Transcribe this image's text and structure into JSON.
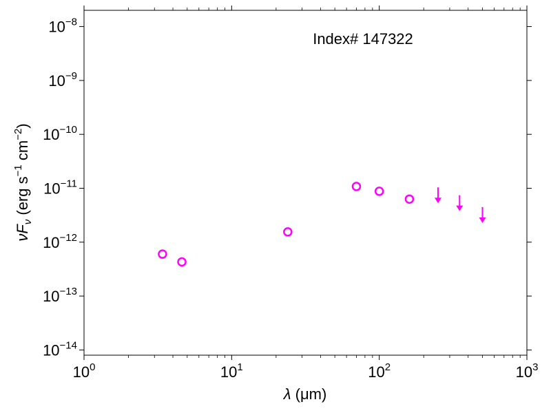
{
  "chart_data": {
    "type": "scatter",
    "title": "",
    "annotation": "Index# 147322",
    "xlabel": {
      "symbol": "λ",
      "unit": " (μm)"
    },
    "ylabel": {
      "symbol": "νF",
      "sub": "ν",
      "units_pre": " (erg s",
      "exp1": "−1",
      "units_mid": " cm",
      "exp2": "−2",
      "units_post": ")"
    },
    "x_scale": "log",
    "y_scale": "log",
    "xlim": [
      1,
      1000
    ],
    "ylim": [
      8e-15,
      2e-08
    ],
    "grid": false,
    "x_ticks": [
      {
        "value": 1,
        "base": "10",
        "exp": "0"
      },
      {
        "value": 10,
        "base": "10",
        "exp": "1"
      },
      {
        "value": 100,
        "base": "10",
        "exp": "2"
      },
      {
        "value": 1000,
        "base": "10",
        "exp": "3"
      }
    ],
    "y_ticks": [
      {
        "value": 1e-14,
        "base": "10",
        "exp": "−14"
      },
      {
        "value": 1e-13,
        "base": "10",
        "exp": "−13"
      },
      {
        "value": 1e-12,
        "base": "10",
        "exp": "−12"
      },
      {
        "value": 1e-11,
        "base": "10",
        "exp": "−11"
      },
      {
        "value": 1e-10,
        "base": "10",
        "exp": "−10"
      },
      {
        "value": 1e-09,
        "base": "10",
        "exp": "−9"
      },
      {
        "value": 1e-08,
        "base": "10",
        "exp": "−8"
      }
    ],
    "marker_color": "#ff00ff",
    "series": [
      {
        "marker": "open-circle",
        "points": [
          {
            "x": 3.4,
            "y": 6e-13
          },
          {
            "x": 4.6,
            "y": 4.3e-13
          },
          {
            "x": 24,
            "y": 1.55e-12
          },
          {
            "x": 70,
            "y": 1.08e-11
          },
          {
            "x": 100,
            "y": 8.8e-12
          },
          {
            "x": 160,
            "y": 6.3e-12
          }
        ]
      },
      {
        "marker": "upper-limit-arrow",
        "points": [
          {
            "x": 250,
            "y": 9.5e-12
          },
          {
            "x": 350,
            "y": 6.8e-12
          },
          {
            "x": 500,
            "y": 4.1e-12
          }
        ]
      }
    ]
  }
}
